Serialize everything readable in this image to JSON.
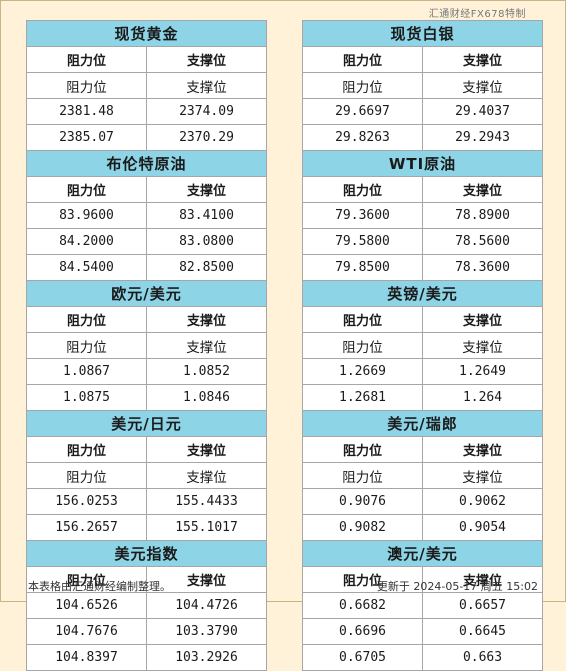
{
  "watermark": "汇通财经FX678特制",
  "footer": {
    "note": "本表格由汇通财经编制整理。",
    "updated": "更新于 2024-05-17 周五 15:02"
  },
  "colors": {
    "title_bg": "#8dd5e6",
    "page_bg": "#fff2d9"
  },
  "left": [
    {
      "title": "现货黄金",
      "headers": [
        "阻力位",
        "支撑位"
      ],
      "rows": [
        [
          "阻力位",
          "支撑位"
        ],
        [
          "2381.48",
          "2374.09"
        ],
        [
          "2385.07",
          "2370.29"
        ]
      ]
    },
    {
      "title": "布伦特原油",
      "headers": [
        "阻力位",
        "支撑位"
      ],
      "rows": [
        [
          "83.9600",
          "83.4100"
        ],
        [
          "84.2000",
          "83.0800"
        ],
        [
          "84.5400",
          "82.8500"
        ]
      ]
    },
    {
      "title": "欧元/美元",
      "headers": [
        "阻力位",
        "支撑位"
      ],
      "rows": [
        [
          "阻力位",
          "支撑位"
        ],
        [
          "1.0867",
          "1.0852"
        ],
        [
          "1.0875",
          "1.0846"
        ]
      ]
    },
    {
      "title": "美元/日元",
      "headers": [
        "阻力位",
        "支撑位"
      ],
      "rows": [
        [
          "阻力位",
          "支撑位"
        ],
        [
          "156.0253",
          "155.4433"
        ],
        [
          "156.2657",
          "155.1017"
        ]
      ]
    },
    {
      "title": "美元指数",
      "headers": [
        "阻力位",
        "支撑位"
      ],
      "rows": [
        [
          "104.6526",
          "104.4726"
        ],
        [
          "104.7676",
          "103.3790"
        ],
        [
          "104.8397",
          "103.2926"
        ]
      ]
    }
  ],
  "right": [
    {
      "title": "现货白银",
      "headers": [
        "阻力位",
        "支撑位"
      ],
      "rows": [
        [
          "阻力位",
          "支撑位"
        ],
        [
          "29.6697",
          "29.4037"
        ],
        [
          "29.8263",
          "29.2943"
        ]
      ]
    },
    {
      "title": "WTI原油",
      "headers": [
        "阻力位",
        "支撑位"
      ],
      "rows": [
        [
          "79.3600",
          "78.8900"
        ],
        [
          "79.5800",
          "78.5600"
        ],
        [
          "79.8500",
          "78.3600"
        ]
      ]
    },
    {
      "title": "英镑/美元",
      "headers": [
        "阻力位",
        "支撑位"
      ],
      "rows": [
        [
          "阻力位",
          "支撑位"
        ],
        [
          "1.2669",
          "1.2649"
        ],
        [
          "1.2681",
          "1.264"
        ]
      ]
    },
    {
      "title": "美元/瑞郎",
      "headers": [
        "阻力位",
        "支撑位"
      ],
      "rows": [
        [
          "阻力位",
          "支撑位"
        ],
        [
          "0.9076",
          "0.9062"
        ],
        [
          "0.9082",
          "0.9054"
        ]
      ]
    },
    {
      "title": "澳元/美元",
      "headers": [
        "阻力位",
        "支撑位"
      ],
      "rows": [
        [
          "0.6682",
          "0.6657"
        ],
        [
          "0.6696",
          "0.6645"
        ],
        [
          "0.6705",
          "0.663"
        ]
      ]
    }
  ]
}
